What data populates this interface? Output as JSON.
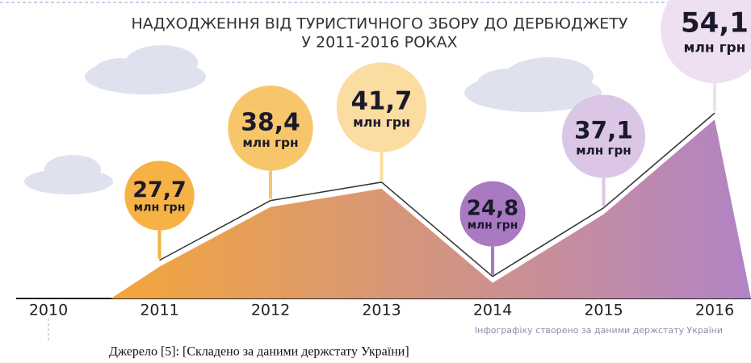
{
  "chart_data": {
    "type": "area",
    "title": "НАДХОДЖЕННЯ ВІД ТУРИСТИЧНОГО ЗБОРУ ДО ДЕРБЮДЖЕТУ",
    "subtitle": "У 2011-2016 РОКАХ",
    "categories": [
      "2010",
      "2011",
      "2012",
      "2013",
      "2014",
      "2015",
      "2016"
    ],
    "values": [
      null,
      27.7,
      38.4,
      41.7,
      24.8,
      37.1,
      54.1
    ],
    "value_labels": [
      null,
      "27,7",
      "38,4",
      "41,7",
      "24,8",
      "37,1",
      "54,1"
    ],
    "unit": "млн грн",
    "bubble_colors": [
      null,
      "#f6b245",
      "#f8c66a",
      "#fbdca1",
      "#a979c1",
      "#dcc6e6",
      "#eedff2"
    ],
    "gradient": [
      "#f4a63a",
      "#b283c6"
    ],
    "ylim": [
      22,
      56
    ],
    "note": "Інфографіку створено за даними держстату України",
    "source": "Джерело [5]: [Складено за даними держстату України]"
  }
}
